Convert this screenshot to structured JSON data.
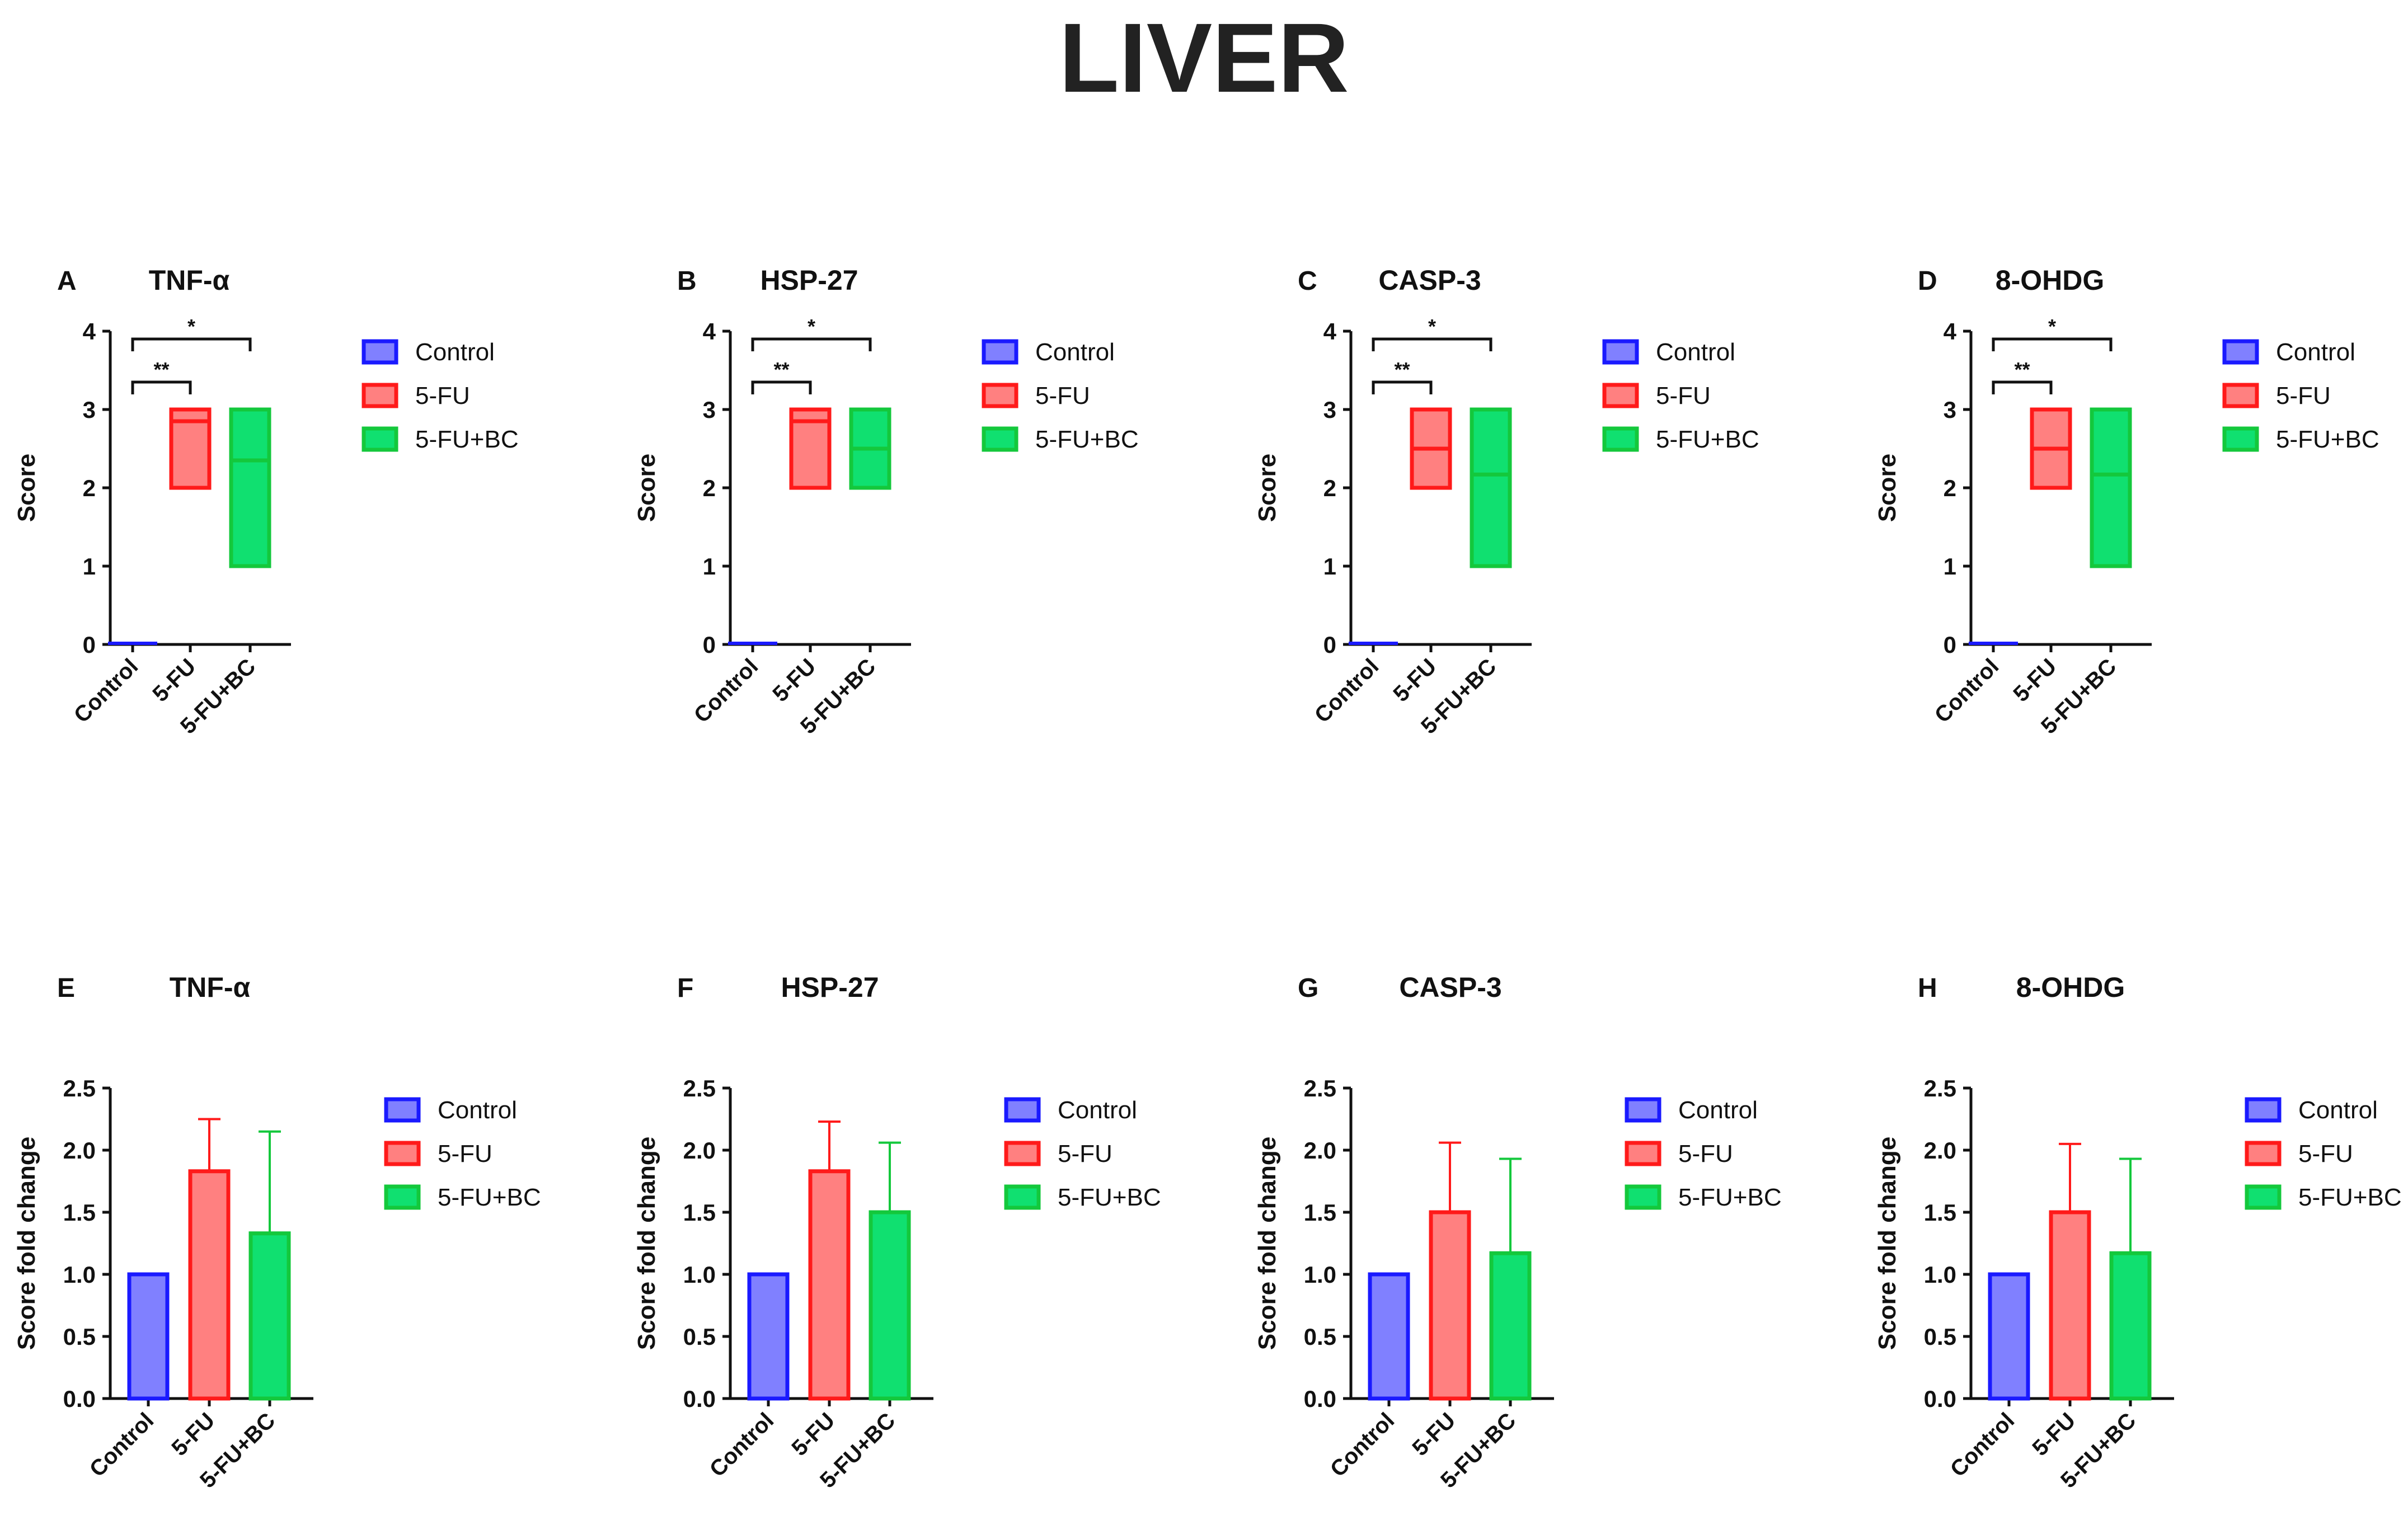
{
  "figure": {
    "title": "LIVER"
  },
  "colors": {
    "control_fill": "#8080ff",
    "control_stroke": "#1a1aff",
    "fu_fill": "#ff8080",
    "fu_stroke": "#ff1a1a",
    "fubc_fill": "#10e070",
    "fubc_stroke": "#14c83c"
  },
  "chart_data": [
    {
      "panel": "A",
      "title": "TNF-α",
      "type": "floating_bar",
      "ylabel": "Score",
      "ylim": [
        0,
        4
      ],
      "yticks": [
        "0",
        "1",
        "2",
        "3",
        "4"
      ],
      "categories": [
        "Control",
        "5-FU",
        "5-FU+BC"
      ],
      "series": [
        {
          "name": "Control",
          "min": 0,
          "max": 0,
          "line": 0
        },
        {
          "name": "5-FU",
          "min": 2,
          "max": 3,
          "line": 2.85
        },
        {
          "name": "5-FU+BC",
          "min": 1,
          "max": 3,
          "line": 2.35
        }
      ],
      "legend": [
        "Control",
        "5-FU",
        "5-FU+BC"
      ],
      "legend_position": "right",
      "annotations": [
        {
          "from": 0,
          "to": 1,
          "label": "**",
          "level": 3.35
        },
        {
          "from": 0,
          "to": 2,
          "label": "*",
          "level": 3.9
        }
      ]
    },
    {
      "panel": "B",
      "title": "HSP-27",
      "type": "floating_bar",
      "ylabel": "Score",
      "ylim": [
        0,
        4
      ],
      "yticks": [
        "0",
        "1",
        "2",
        "3",
        "4"
      ],
      "categories": [
        "Control",
        "5-FU",
        "5-FU+BC"
      ],
      "series": [
        {
          "name": "Control",
          "min": 0,
          "max": 0,
          "line": 0
        },
        {
          "name": "5-FU",
          "min": 2,
          "max": 3,
          "line": 2.85
        },
        {
          "name": "5-FU+BC",
          "min": 2,
          "max": 3,
          "line": 2.5
        }
      ],
      "legend": [
        "Control",
        "5-FU",
        "5-FU+BC"
      ],
      "legend_position": "right",
      "annotations": [
        {
          "from": 0,
          "to": 1,
          "label": "**",
          "level": 3.35
        },
        {
          "from": 0,
          "to": 2,
          "label": "*",
          "level": 3.9
        }
      ]
    },
    {
      "panel": "C",
      "title": "CASP-3",
      "type": "floating_bar",
      "ylabel": "Score",
      "ylim": [
        0,
        4
      ],
      "yticks": [
        "0",
        "1",
        "2",
        "3",
        "4"
      ],
      "categories": [
        "Control",
        "5-FU",
        "5-FU+BC"
      ],
      "series": [
        {
          "name": "Control",
          "min": 0,
          "max": 0,
          "line": 0
        },
        {
          "name": "5-FU",
          "min": 2,
          "max": 3,
          "line": 2.5
        },
        {
          "name": "5-FU+BC",
          "min": 1,
          "max": 3,
          "line": 2.17
        }
      ],
      "legend": [
        "Control",
        "5-FU",
        "5-FU+BC"
      ],
      "legend_position": "right",
      "annotations": [
        {
          "from": 0,
          "to": 1,
          "label": "**",
          "level": 3.35
        },
        {
          "from": 0,
          "to": 2,
          "label": "*",
          "level": 3.9
        }
      ]
    },
    {
      "panel": "D",
      "title": "8-OHDG",
      "type": "floating_bar",
      "ylabel": "Score",
      "ylim": [
        0,
        4
      ],
      "yticks": [
        "0",
        "1",
        "2",
        "3",
        "4"
      ],
      "categories": [
        "Control",
        "5-FU",
        "5-FU+BC"
      ],
      "series": [
        {
          "name": "Control",
          "min": 0,
          "max": 0,
          "line": 0
        },
        {
          "name": "5-FU",
          "min": 2,
          "max": 3,
          "line": 2.5
        },
        {
          "name": "5-FU+BC",
          "min": 1,
          "max": 3,
          "line": 2.17
        }
      ],
      "legend": [
        "Control",
        "5-FU",
        "5-FU+BC"
      ],
      "legend_position": "right",
      "annotations": [
        {
          "from": 0,
          "to": 1,
          "label": "**",
          "level": 3.35
        },
        {
          "from": 0,
          "to": 2,
          "label": "*",
          "level": 3.9
        }
      ]
    },
    {
      "panel": "E",
      "title": "TNF-α",
      "type": "bar",
      "ylabel": "Score fold change",
      "ylim": [
        0,
        2.5
      ],
      "yticks": [
        "0.0",
        "0.5",
        "1.0",
        "1.5",
        "2.0",
        "2.5"
      ],
      "categories": [
        "Control",
        "5-FU",
        "5-FU+BC"
      ],
      "values": [
        1.0,
        1.83,
        1.33
      ],
      "error_upper": [
        0,
        2.25,
        2.15
      ],
      "legend": [
        "Control",
        "5-FU",
        "5-FU+BC"
      ],
      "legend_position": "right"
    },
    {
      "panel": "F",
      "title": "HSP-27",
      "type": "bar",
      "ylabel": "Score fold change",
      "ylim": [
        0,
        2.5
      ],
      "yticks": [
        "0.0",
        "0.5",
        "1.0",
        "1.5",
        "2.0",
        "2.5"
      ],
      "categories": [
        "Control",
        "5-FU",
        "5-FU+BC"
      ],
      "values": [
        1.0,
        1.83,
        1.5
      ],
      "error_upper": [
        0,
        2.23,
        2.06
      ],
      "legend": [
        "Control",
        "5-FU",
        "5-FU+BC"
      ],
      "legend_position": "right"
    },
    {
      "panel": "G",
      "title": "CASP-3",
      "type": "bar",
      "ylabel": "Score fold change",
      "ylim": [
        0,
        2.5
      ],
      "yticks": [
        "0.0",
        "0.5",
        "1.0",
        "1.5",
        "2.0",
        "2.5"
      ],
      "categories": [
        "Control",
        "5-FU",
        "5-FU+BC"
      ],
      "values": [
        1.0,
        1.5,
        1.17
      ],
      "error_upper": [
        0,
        2.06,
        1.93
      ],
      "legend": [
        "Control",
        "5-FU",
        "5-FU+BC"
      ],
      "legend_position": "right"
    },
    {
      "panel": "H",
      "title": "8-OHDG",
      "type": "bar",
      "ylabel": "Score fold change",
      "ylim": [
        0,
        2.5
      ],
      "yticks": [
        "0.0",
        "0.5",
        "1.0",
        "1.5",
        "2.0",
        "2.5"
      ],
      "categories": [
        "Control",
        "5-FU",
        "5-FU+BC"
      ],
      "values": [
        1.0,
        1.5,
        1.17
      ],
      "error_upper": [
        0,
        2.05,
        1.93
      ],
      "legend": [
        "Control",
        "5-FU",
        "5-FU+BC"
      ],
      "legend_position": "right"
    }
  ]
}
